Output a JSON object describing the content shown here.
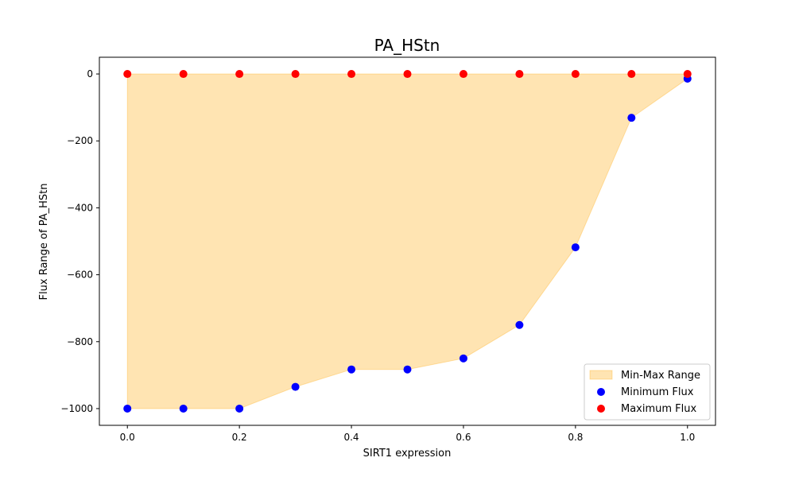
{
  "chart_data": {
    "type": "scatter",
    "title": "PA_HStn",
    "xlabel": "SIRT1 expression",
    "ylabel": "Flux Range of PA_HStn",
    "xlim": [
      -0.05,
      1.05
    ],
    "ylim": [
      -1050,
      50
    ],
    "xticks": [
      0.0,
      0.2,
      0.4,
      0.6,
      0.8,
      1.0
    ],
    "xtick_labels": [
      "0.0",
      "0.2",
      "0.4",
      "0.6",
      "0.8",
      "1.0"
    ],
    "yticks": [
      0,
      -200,
      -400,
      -600,
      -800,
      -1000
    ],
    "ytick_labels": [
      "0",
      "−200",
      "−400",
      "−600",
      "−800",
      "−1000"
    ],
    "x": [
      0.0,
      0.1,
      0.2,
      0.3,
      0.4,
      0.5,
      0.6,
      0.7,
      0.8,
      0.9,
      1.0
    ],
    "series": [
      {
        "name": "Minimum Flux",
        "color": "#0000ff",
        "values": [
          -1000,
          -1000,
          -1000,
          -935,
          -883,
          -883,
          -850,
          -750,
          -518,
          -131,
          -14
        ]
      },
      {
        "name": "Maximum Flux",
        "color": "#ff0000",
        "values": [
          0,
          0,
          0,
          0,
          0,
          0,
          0,
          0,
          0,
          0,
          0
        ]
      }
    ],
    "fill": {
      "name": "Min-Max Range",
      "color": "#ffa500",
      "opacity": 0.3
    },
    "legend": {
      "position": "lower-right",
      "entries": [
        "Min-Max Range",
        "Minimum Flux",
        "Maximum Flux"
      ]
    },
    "grid": false
  }
}
